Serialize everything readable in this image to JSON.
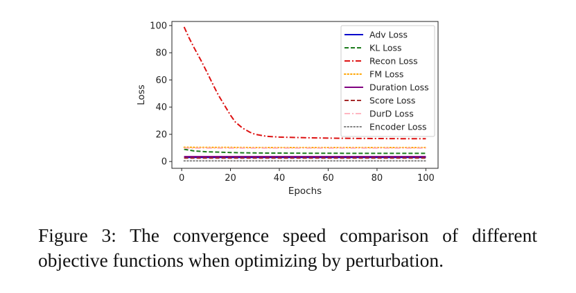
{
  "chart_data": {
    "type": "line",
    "title": "",
    "xlabel": "Epochs",
    "ylabel": "Loss",
    "xlim": [
      -4,
      105
    ],
    "ylim": [
      -5,
      103
    ],
    "xticks": [
      0,
      20,
      40,
      60,
      80,
      100
    ],
    "yticks": [
      0,
      20,
      40,
      60,
      80,
      100
    ],
    "grid": false,
    "legend_position": "top-right",
    "series": [
      {
        "name": "Adv Loss",
        "color": "#0000cc",
        "style": "solid",
        "x": [
          1,
          10,
          20,
          30,
          40,
          50,
          60,
          70,
          80,
          90,
          100
        ],
        "y": [
          3.0,
          3.0,
          3.0,
          3.0,
          3.0,
          3.0,
          3.0,
          3.0,
          3.0,
          3.0,
          3.0
        ]
      },
      {
        "name": "KL Loss",
        "color": "#1a7a1a",
        "style": "dashed",
        "x": [
          1,
          5,
          10,
          15,
          20,
          25,
          30,
          35,
          40,
          50,
          60,
          70,
          80,
          90,
          100
        ],
        "y": [
          9.0,
          7.8,
          7.2,
          6.9,
          6.6,
          6.4,
          6.3,
          6.2,
          6.2,
          6.1,
          6.1,
          6.0,
          6.0,
          6.0,
          6.0
        ]
      },
      {
        "name": "Recon Loss",
        "color": "#dd1111",
        "style": "dashdot",
        "x": [
          1,
          3,
          5,
          8,
          10,
          13,
          15,
          18,
          20,
          22,
          25,
          28,
          30,
          35,
          40,
          50,
          60,
          70,
          80,
          90,
          100
        ],
        "y": [
          99,
          91,
          84,
          74,
          67,
          56,
          49,
          40,
          34,
          29,
          24.5,
          21.5,
          20,
          18.5,
          18,
          17.5,
          17.2,
          17.0,
          16.9,
          16.8,
          16.8
        ]
      },
      {
        "name": "FM Loss",
        "color": "#ffa500",
        "style": "dotted",
        "x": [
          1,
          10,
          20,
          30,
          40,
          50,
          60,
          70,
          80,
          90,
          100
        ],
        "y": [
          10.5,
          10.4,
          10.4,
          10.3,
          10.3,
          10.3,
          10.3,
          10.3,
          10.3,
          10.3,
          10.3
        ]
      },
      {
        "name": "Duration Loss",
        "color": "#800080",
        "style": "solid",
        "x": [
          1,
          10,
          20,
          30,
          40,
          50,
          60,
          70,
          80,
          90,
          100
        ],
        "y": [
          3.6,
          3.6,
          3.6,
          3.6,
          3.6,
          3.6,
          3.6,
          3.6,
          3.6,
          3.6,
          3.6
        ]
      },
      {
        "name": "Score Loss",
        "color": "#a52a2a",
        "style": "dashed",
        "x": [
          1,
          10,
          20,
          30,
          40,
          50,
          60,
          70,
          80,
          90,
          100
        ],
        "y": [
          2.5,
          2.5,
          2.5,
          2.5,
          2.5,
          2.5,
          2.5,
          2.5,
          2.5,
          2.5,
          2.5
        ]
      },
      {
        "name": "DurD Loss",
        "color": "#ffb6c1",
        "style": "dashdot",
        "x": [
          1,
          10,
          20,
          30,
          40,
          50,
          60,
          70,
          80,
          90,
          100
        ],
        "y": [
          9.8,
          9.8,
          9.8,
          9.8,
          9.8,
          9.8,
          9.8,
          9.8,
          9.8,
          9.8,
          9.8
        ]
      },
      {
        "name": "Encoder Loss",
        "color": "#808080",
        "style": "dotted",
        "x": [
          1,
          10,
          20,
          30,
          40,
          50,
          60,
          70,
          80,
          90,
          100
        ],
        "y": [
          0.5,
          0.5,
          0.5,
          0.5,
          0.5,
          0.5,
          0.5,
          0.5,
          0.5,
          0.5,
          0.5
        ]
      }
    ]
  },
  "caption": "Figure 3: The convergence speed comparison of different objective functions when optimizing by perturbation."
}
